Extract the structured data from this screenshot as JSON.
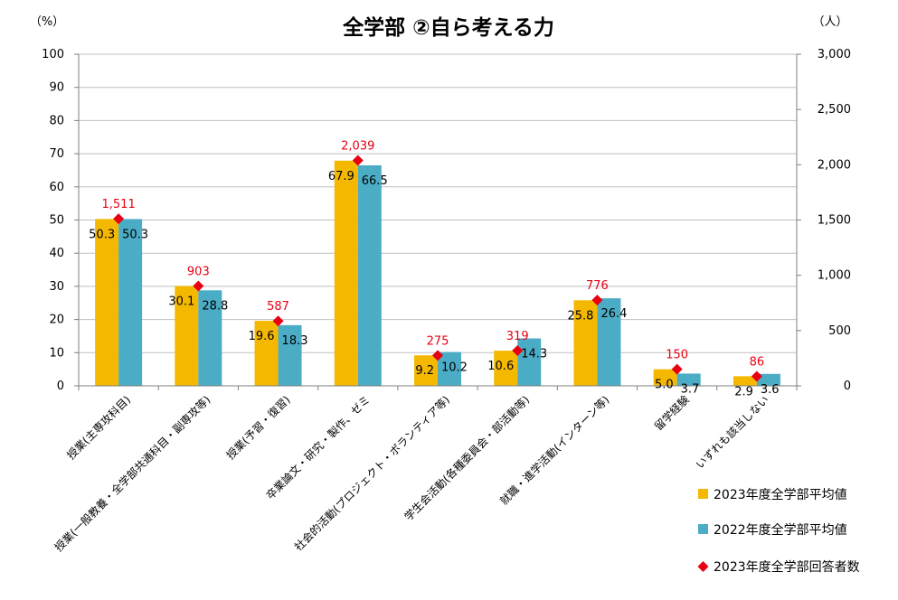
{
  "chart_data": {
    "type": "bar",
    "title": "全学部 ②自ら考える力",
    "y_left_unit": "（%）",
    "y_right_unit": "（人）",
    "ylim": [
      0,
      100
    ],
    "y2lim": [
      0,
      3000
    ],
    "y_ticks": [
      "0",
      "10",
      "20",
      "30",
      "40",
      "50",
      "60",
      "70",
      "80",
      "90",
      "100"
    ],
    "y2_ticks": [
      "0",
      "500",
      "1,000",
      "1,500",
      "2,000",
      "2,500",
      "3,000"
    ],
    "grid": true,
    "legend_position": "bottom-right",
    "categories": [
      "授業(主専攻科目)",
      "授業(一般教養・全学部共通科目・副専攻等)",
      "授業(予習・復習)",
      "卒業論文・研究・製作、ゼミ",
      "社会的活動(プロジェクト・ボランティア等)",
      "学生会活動(各種委員会・部活動等)",
      "就職・進学活動(インターン等)",
      "留学経験",
      "いずれも該当しない"
    ],
    "series": [
      {
        "name": "2023年度全学部平均値",
        "axis": "left",
        "kind": "bar",
        "color": "#f5b800",
        "values": [
          50.3,
          30.1,
          19.6,
          67.9,
          9.2,
          10.6,
          25.8,
          5.0,
          2.9
        ],
        "labels": [
          "50.3",
          "30.1",
          "19.6",
          "67.9",
          "9.2",
          "10.6",
          "25.8",
          "5.0",
          "2.9"
        ]
      },
      {
        "name": "2022年度全学部平均値",
        "axis": "left",
        "kind": "bar",
        "color": "#4bacc6",
        "values": [
          50.3,
          28.8,
          18.3,
          66.5,
          10.2,
          14.3,
          26.4,
          3.7,
          3.6
        ],
        "labels": [
          "50.3",
          "28.8",
          "18.3",
          "66.5",
          "10.2",
          "14.3",
          "26.4",
          "3.7",
          "3.6"
        ]
      },
      {
        "name": "2023年度全学部回答者数",
        "axis": "right",
        "kind": "marker",
        "color": "#e60012",
        "values": [
          1511,
          903,
          587,
          2039,
          275,
          319,
          776,
          150,
          86
        ],
        "labels": [
          "1,511",
          "903",
          "587",
          "2,039",
          "275",
          "319",
          "776",
          "150",
          "86"
        ]
      }
    ]
  }
}
